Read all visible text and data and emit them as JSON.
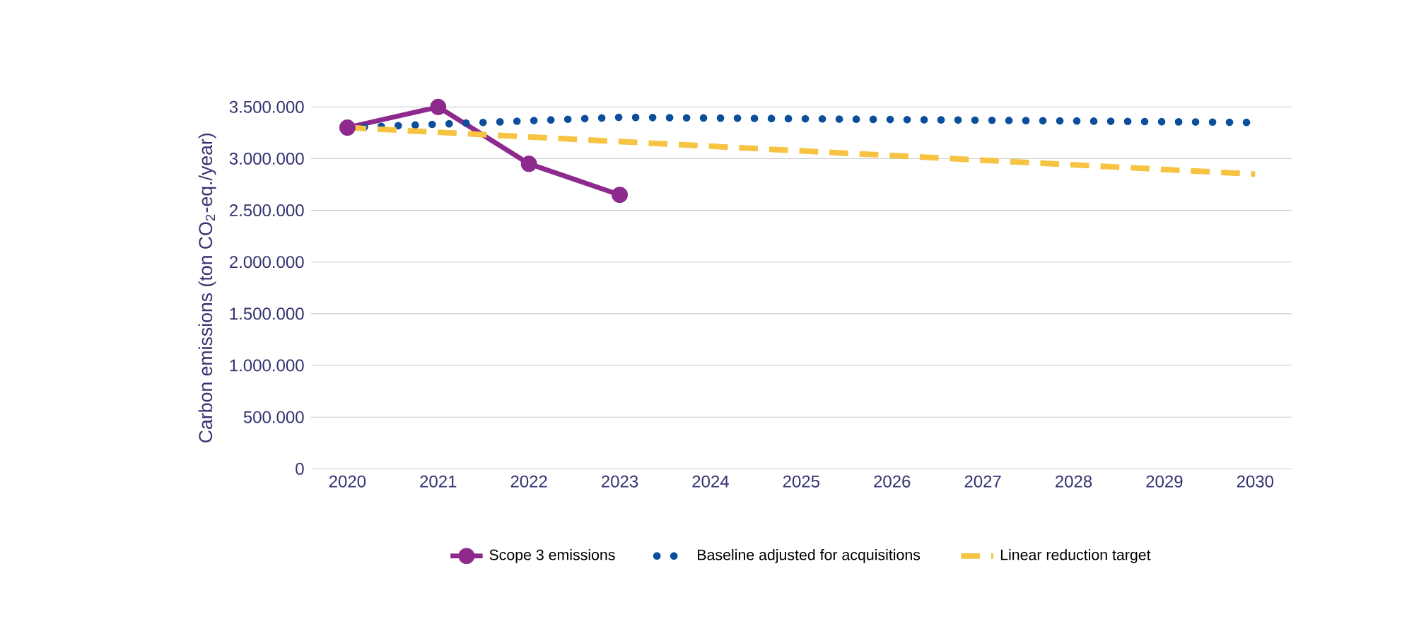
{
  "chart_data": {
    "type": "line",
    "ylabel": "Carbon emissions (ton CO$_{2}$-eq./year)",
    "x": [
      2020,
      2021,
      2022,
      2023
    ],
    "series": [
      {
        "name": "Scope 3 emissions",
        "color": "#8e2a8e",
        "values": [
          3300000,
          3500000,
          2950000,
          2650000
        ],
        "marker": "circle",
        "line_style": "solid"
      },
      {
        "name": "Baseline adjusted for acquisitions",
        "color": "#0b4f9c",
        "x": [
          2020,
          2023,
          2030
        ],
        "values": [
          3300000,
          3400000,
          3350000
        ],
        "marker": "none",
        "line_style": "dotted"
      },
      {
        "name": "Linear reduction target",
        "color": "#f6c343",
        "x": [
          2020,
          2030
        ],
        "values": [
          3300000,
          2850000
        ],
        "marker": "none",
        "line_style": "dashed"
      }
    ],
    "xlim": [
      2019.6,
      2030.4
    ],
    "xticks": [
      2020,
      2021,
      2022,
      2023,
      2024,
      2025,
      2026,
      2027,
      2028,
      2029,
      2030
    ],
    "ylim": [
      0,
      3500000
    ],
    "yticks": [
      0,
      {
        "value": 500000,
        "label": "500.000"
      },
      {
        "value": 1000000,
        "label": "1.000.000"
      },
      {
        "value": 1500000,
        "label": "1.500.000"
      },
      {
        "value": 2000000,
        "label": "2.000.000"
      },
      {
        "value": 2500000,
        "label": "2.500.000"
      },
      {
        "value": 3000000,
        "label": "3.000.000"
      },
      {
        "value": 3500000,
        "label": "3.500.000"
      }
    ],
    "grid": "y",
    "legend": "bottom"
  }
}
